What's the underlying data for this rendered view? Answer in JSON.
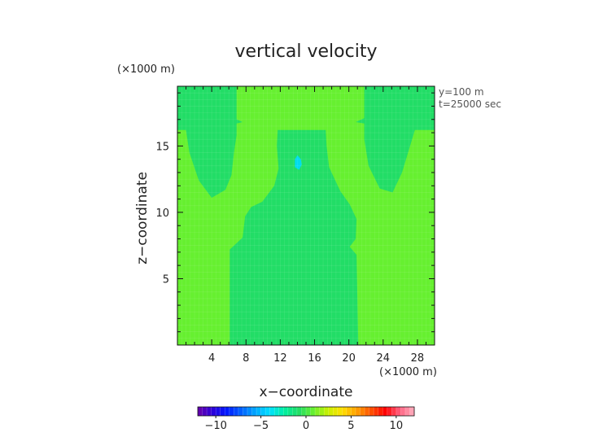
{
  "chart_data": {
    "type": "heatmap",
    "title": "vertical velocity",
    "xlabel": "x−coordinate",
    "ylabel": "z−coordinate",
    "x_unit": "(×1000 m)",
    "y_unit": "(×1000 m)",
    "annotations": [
      "y=100 m",
      "t=25000 sec"
    ],
    "xlim": [
      0,
      30
    ],
    "ylim": [
      0,
      19.5
    ],
    "x_ticks": [
      4,
      8,
      12,
      16,
      20,
      24,
      28
    ],
    "x_tick_labels": [
      "4",
      "8",
      "12",
      "16",
      "20",
      "24",
      "28"
    ],
    "y_ticks": [
      5,
      10,
      15
    ],
    "y_tick_labels": [
      "5",
      "10",
      "15"
    ],
    "grid": true,
    "colorbar": {
      "range": [
        -12,
        12
      ],
      "ticks": [
        -10,
        -5,
        0,
        5,
        10
      ],
      "tick_labels": [
        "−10",
        "−5",
        "0",
        "5",
        "10"
      ],
      "colors": [
        "#6a00a8",
        "#2d00d8",
        "#0018ff",
        "#0060ff",
        "#00a8ff",
        "#00e0ff",
        "#00f0a0",
        "#22dd66",
        "#66f030",
        "#c8f000",
        "#ffe000",
        "#ffa000",
        "#ff5000",
        "#ff0000",
        "#ff6080",
        "#ffb0c0"
      ]
    },
    "regions": [
      {
        "level": "weak updraft (~1)",
        "color": "#66f030",
        "polygon": [
          [
            0,
            0
          ],
          [
            30,
            0
          ],
          [
            30,
            19.5
          ],
          [
            0,
            19.5
          ]
        ]
      },
      {
        "level": "near zero",
        "color": "#22dd66",
        "polygon": [
          [
            6.1,
            0
          ],
          [
            6.1,
            7.2
          ],
          [
            7.6,
            8.1
          ],
          [
            7.9,
            9.7
          ],
          [
            8.6,
            10.4
          ],
          [
            9.9,
            10.8
          ],
          [
            11.3,
            12.0
          ],
          [
            11.8,
            13.3
          ],
          [
            11.6,
            15.0
          ],
          [
            11.7,
            16.2
          ],
          [
            17.3,
            16.2
          ],
          [
            17.4,
            15.0
          ],
          [
            17.7,
            13.4
          ],
          [
            19.0,
            11.6
          ],
          [
            20.1,
            10.6
          ],
          [
            20.9,
            9.5
          ],
          [
            20.8,
            8.0
          ],
          [
            20.1,
            7.4
          ],
          [
            20.9,
            6.8
          ],
          [
            21.1,
            0
          ]
        ]
      },
      {
        "level": "near zero",
        "color": "#22dd66",
        "polygon": [
          [
            0,
            19.5
          ],
          [
            6.9,
            19.5
          ],
          [
            6.9,
            17.0
          ],
          [
            7.6,
            16.8
          ],
          [
            6.9,
            16.7
          ],
          [
            6.9,
            15.8
          ],
          [
            6.6,
            14.5
          ],
          [
            6.3,
            12.8
          ],
          [
            5.6,
            11.7
          ],
          [
            4.0,
            11.1
          ],
          [
            2.5,
            12.4
          ],
          [
            1.4,
            14.5
          ],
          [
            1.0,
            16.2
          ],
          [
            0,
            16.2
          ]
        ]
      },
      {
        "level": "near zero",
        "color": "#22dd66",
        "polygon": [
          [
            30,
            19.5
          ],
          [
            21.8,
            19.5
          ],
          [
            21.8,
            17.1
          ],
          [
            20.8,
            16.8
          ],
          [
            21.8,
            16.7
          ],
          [
            21.8,
            15.5
          ],
          [
            22.3,
            13.5
          ],
          [
            23.6,
            11.8
          ],
          [
            25.1,
            11.5
          ],
          [
            26.2,
            13.0
          ],
          [
            27.0,
            14.7
          ],
          [
            27.7,
            16.2
          ],
          [
            30,
            16.2
          ]
        ]
      },
      {
        "level": "weak downdraft (~-2)",
        "color": "#00dcec",
        "polygon": [
          [
            13.7,
            13.4
          ],
          [
            14.2,
            13.2
          ],
          [
            14.5,
            13.6
          ],
          [
            14.4,
            14.0
          ],
          [
            14.0,
            14.3
          ],
          [
            13.7,
            14.0
          ]
        ]
      }
    ]
  }
}
